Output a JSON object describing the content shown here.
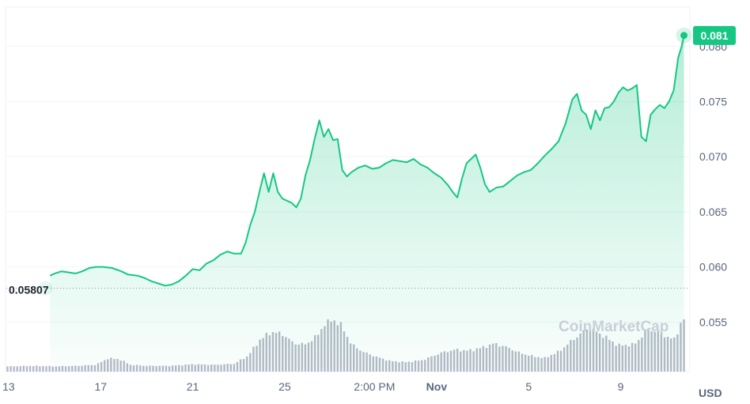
{
  "chart_data": {
    "type": "area",
    "currency": "USD",
    "watermark": "CoinMarketCap",
    "start_value_label": "0.05807",
    "current_value_label": "0.081",
    "line_color": "#16c784",
    "volume_color": "#b4b9c6",
    "y_ticks": [
      "0.080",
      "0.075",
      "0.070",
      "0.065",
      "0.060",
      "0.055"
    ],
    "x_ticks": [
      {
        "label": "13",
        "t": 13,
        "bold": false
      },
      {
        "label": "17",
        "t": 17,
        "bold": false
      },
      {
        "label": "21",
        "t": 21,
        "bold": false
      },
      {
        "label": "25",
        "t": 25,
        "bold": false
      },
      {
        "label": "2:00 PM",
        "t": 28.9,
        "bold": false
      },
      {
        "label": "Nov",
        "t": 31.6,
        "bold": true
      },
      {
        "label": "5",
        "t": 35.6,
        "bold": false
      },
      {
        "label": "9",
        "t": 39.6,
        "bold": false
      }
    ],
    "ylim": [
      0.0505,
      0.0835
    ],
    "xlim": [
      12.9,
      42.4
    ],
    "price": [
      [
        14.8,
        0.0592
      ],
      [
        15.0,
        0.0594
      ],
      [
        15.3,
        0.0596
      ],
      [
        15.6,
        0.0595
      ],
      [
        15.9,
        0.0594
      ],
      [
        16.2,
        0.0596
      ],
      [
        16.5,
        0.0599
      ],
      [
        16.8,
        0.06
      ],
      [
        17.1,
        0.06
      ],
      [
        17.5,
        0.0599
      ],
      [
        17.9,
        0.0596
      ],
      [
        18.2,
        0.0593
      ],
      [
        18.6,
        0.0592
      ],
      [
        18.9,
        0.059
      ],
      [
        19.2,
        0.0587
      ],
      [
        19.5,
        0.0585
      ],
      [
        19.8,
        0.0583
      ],
      [
        20.1,
        0.0584
      ],
      [
        20.4,
        0.0587
      ],
      [
        20.7,
        0.0592
      ],
      [
        21.0,
        0.0598
      ],
      [
        21.3,
        0.0597
      ],
      [
        21.6,
        0.0603
      ],
      [
        21.9,
        0.0606
      ],
      [
        22.2,
        0.0611
      ],
      [
        22.5,
        0.0614
      ],
      [
        22.8,
        0.0612
      ],
      [
        23.1,
        0.0612
      ],
      [
        23.3,
        0.0622
      ],
      [
        23.5,
        0.0638
      ],
      [
        23.7,
        0.065
      ],
      [
        23.9,
        0.0668
      ],
      [
        24.1,
        0.0685
      ],
      [
        24.3,
        0.0668
      ],
      [
        24.5,
        0.0685
      ],
      [
        24.7,
        0.0668
      ],
      [
        24.9,
        0.0662
      ],
      [
        25.1,
        0.066
      ],
      [
        25.3,
        0.0658
      ],
      [
        25.5,
        0.0654
      ],
      [
        25.7,
        0.0662
      ],
      [
        25.9,
        0.0683
      ],
      [
        26.1,
        0.0697
      ],
      [
        26.3,
        0.0716
      ],
      [
        26.5,
        0.0733
      ],
      [
        26.7,
        0.0718
      ],
      [
        26.9,
        0.0725
      ],
      [
        27.1,
        0.0715
      ],
      [
        27.3,
        0.0716
      ],
      [
        27.5,
        0.0688
      ],
      [
        27.7,
        0.0682
      ],
      [
        27.9,
        0.0686
      ],
      [
        28.2,
        0.069
      ],
      [
        28.5,
        0.0692
      ],
      [
        28.8,
        0.0689
      ],
      [
        29.1,
        0.069
      ],
      [
        29.4,
        0.0694
      ],
      [
        29.7,
        0.0697
      ],
      [
        30.0,
        0.0696
      ],
      [
        30.3,
        0.0695
      ],
      [
        30.6,
        0.0698
      ],
      [
        30.9,
        0.0693
      ],
      [
        31.2,
        0.069
      ],
      [
        31.5,
        0.0685
      ],
      [
        31.8,
        0.0681
      ],
      [
        32.1,
        0.0674
      ],
      [
        32.3,
        0.0668
      ],
      [
        32.5,
        0.0663
      ],
      [
        32.7,
        0.068
      ],
      [
        32.9,
        0.0694
      ],
      [
        33.1,
        0.0698
      ],
      [
        33.3,
        0.0702
      ],
      [
        33.5,
        0.069
      ],
      [
        33.7,
        0.0675
      ],
      [
        33.9,
        0.0668
      ],
      [
        34.2,
        0.0672
      ],
      [
        34.5,
        0.0673
      ],
      [
        34.8,
        0.0678
      ],
      [
        35.1,
        0.0683
      ],
      [
        35.4,
        0.0686
      ],
      [
        35.7,
        0.0688
      ],
      [
        36.0,
        0.0694
      ],
      [
        36.3,
        0.0701
      ],
      [
        36.6,
        0.0707
      ],
      [
        36.9,
        0.0714
      ],
      [
        37.2,
        0.073
      ],
      [
        37.5,
        0.0752
      ],
      [
        37.7,
        0.0757
      ],
      [
        37.9,
        0.0742
      ],
      [
        38.1,
        0.0738
      ],
      [
        38.3,
        0.0725
      ],
      [
        38.5,
        0.0742
      ],
      [
        38.7,
        0.0733
      ],
      [
        38.9,
        0.0744
      ],
      [
        39.1,
        0.0745
      ],
      [
        39.3,
        0.075
      ],
      [
        39.5,
        0.0758
      ],
      [
        39.7,
        0.0763
      ],
      [
        39.9,
        0.076
      ],
      [
        40.1,
        0.0762
      ],
      [
        40.3,
        0.0765
      ],
      [
        40.5,
        0.0718
      ],
      [
        40.7,
        0.0714
      ],
      [
        40.9,
        0.0738
      ],
      [
        41.1,
        0.0743
      ],
      [
        41.3,
        0.0747
      ],
      [
        41.5,
        0.0744
      ],
      [
        41.7,
        0.075
      ],
      [
        41.9,
        0.076
      ],
      [
        42.1,
        0.079
      ],
      [
        42.25,
        0.08
      ],
      [
        42.35,
        0.081
      ]
    ],
    "volume": [
      [
        13.0,
        0.1
      ],
      [
        14.0,
        0.11
      ],
      [
        15.0,
        0.1
      ],
      [
        16.0,
        0.11
      ],
      [
        16.8,
        0.13
      ],
      [
        17.3,
        0.25
      ],
      [
        17.8,
        0.24
      ],
      [
        18.3,
        0.13
      ],
      [
        19.0,
        0.11
      ],
      [
        20.0,
        0.11
      ],
      [
        21.0,
        0.14
      ],
      [
        22.0,
        0.13
      ],
      [
        22.8,
        0.15
      ],
      [
        23.4,
        0.3
      ],
      [
        23.9,
        0.6
      ],
      [
        24.4,
        0.76
      ],
      [
        24.9,
        0.72
      ],
      [
        25.4,
        0.54
      ],
      [
        25.9,
        0.52
      ],
      [
        26.4,
        0.68
      ],
      [
        26.8,
        0.96
      ],
      [
        27.1,
        1.0
      ],
      [
        27.5,
        0.86
      ],
      [
        27.9,
        0.52
      ],
      [
        28.4,
        0.38
      ],
      [
        29.0,
        0.28
      ],
      [
        29.6,
        0.2
      ],
      [
        30.3,
        0.18
      ],
      [
        31.0,
        0.22
      ],
      [
        31.8,
        0.36
      ],
      [
        32.4,
        0.42
      ],
      [
        33.0,
        0.4
      ],
      [
        33.6,
        0.46
      ],
      [
        34.1,
        0.54
      ],
      [
        34.7,
        0.46
      ],
      [
        35.2,
        0.36
      ],
      [
        35.7,
        0.3
      ],
      [
        36.3,
        0.26
      ],
      [
        36.9,
        0.38
      ],
      [
        37.5,
        0.6
      ],
      [
        38.2,
        0.84
      ],
      [
        38.8,
        0.7
      ],
      [
        39.5,
        0.5
      ],
      [
        40.2,
        0.52
      ],
      [
        40.8,
        0.82
      ],
      [
        41.4,
        0.72
      ],
      [
        41.9,
        0.6
      ],
      [
        42.3,
        1.0
      ]
    ]
  }
}
